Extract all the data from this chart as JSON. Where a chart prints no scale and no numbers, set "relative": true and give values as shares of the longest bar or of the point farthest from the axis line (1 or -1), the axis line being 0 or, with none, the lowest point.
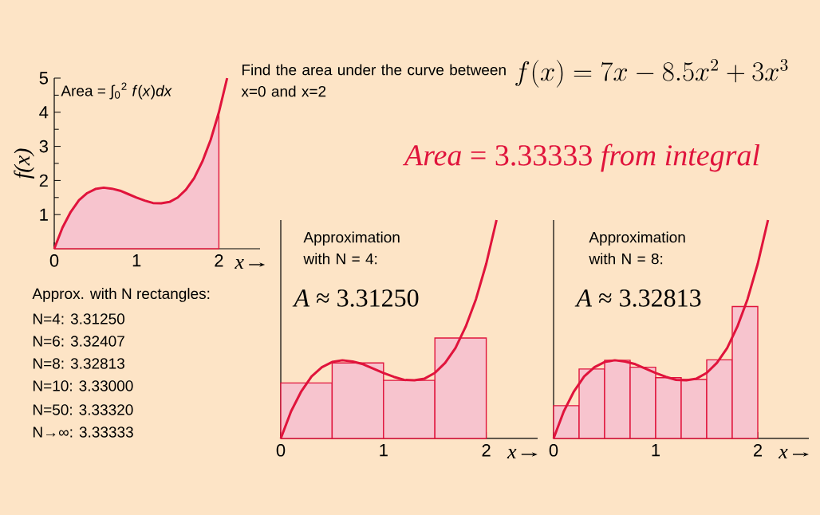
{
  "chart_data": [
    {
      "type": "area",
      "xlabel": "x",
      "ylabel": "f(x)",
      "xlim": [
        0,
        2.5
      ],
      "ylim": [
        0,
        5
      ],
      "xticks": [
        0,
        1,
        2
      ],
      "yticks": [
        1,
        2,
        3,
        4,
        5
      ],
      "series": [
        {
          "color": "#e0143c",
          "x": [
            0,
            0.1,
            0.2,
            0.3,
            0.4,
            0.5,
            0.6,
            0.7,
            0.8,
            0.9,
            1.0,
            1.1,
            1.2,
            1.3,
            1.4,
            1.5,
            1.6,
            1.7,
            1.8,
            1.9,
            2.0
          ],
          "values": [
            0,
            0.62,
            1.08,
            1.42,
            1.63,
            1.75,
            1.79,
            1.76,
            1.7,
            1.6,
            1.5,
            1.41,
            1.34,
            1.33,
            1.37,
            1.5,
            1.73,
            2.07,
            2.56,
            3.19,
            4.0
          ]
        },
        {
          "type": "line",
          "color": "#e0143c",
          "x": [
            0,
            0.1,
            0.2,
            0.3,
            0.4,
            0.5,
            0.6,
            0.7,
            0.8,
            0.9,
            1.0,
            1.1,
            1.2,
            1.3,
            1.4,
            1.5,
            1.6,
            1.7,
            1.8,
            1.9,
            2.0,
            2.1
          ],
          "values": [
            0,
            0.62,
            1.08,
            1.42,
            1.63,
            1.75,
            1.79,
            1.76,
            1.7,
            1.6,
            1.5,
            1.41,
            1.34,
            1.33,
            1.37,
            1.5,
            1.73,
            2.07,
            2.56,
            3.19,
            4.0,
            5.0
          ]
        }
      ],
      "annotations": [
        "Find the area under the curve between x=0 and x=2",
        "f(x) = 7x - 8.5x^{2} + 3x^{3}",
        "*Area* = 3.33333 *from integral*",
        "Area = ∫$_{0}$$^{2}$ *f*(*x*)*dx*",
        "Approx. with  N rectangles:",
        "N=4:   3.31250",
        "N=6:   3.32407",
        "N=8:   3.32813",
        "N=10: 3.33000",
        "N=50: 3.33320",
        "N→∞: 3.33333"
      ]
    },
    {
      "type": "bar",
      "relative": true,
      "xlabel": "x",
      "xlim": [
        0,
        2.5
      ],
      "xticks": [
        0,
        1,
        2
      ],
      "series": [
        {
          "color": "#e0143c",
          "x": [
            0.25,
            0.75,
            1.25,
            1.75
          ],
          "values": [
            0.254,
            0.346,
            0.266,
            0.46
          ]
        },
        {
          "type": "line",
          "color": "#e0143c",
          "x": [
            0,
            0.1,
            0.2,
            0.3,
            0.4,
            0.5,
            0.6,
            0.7,
            0.8,
            0.9,
            1.0,
            1.1,
            1.2,
            1.3,
            1.4,
            1.5,
            1.6,
            1.7,
            1.8,
            1.9,
            2.0,
            2.1
          ],
          "values": [
            0,
            0.124,
            0.216,
            0.284,
            0.326,
            0.35,
            0.358,
            0.352,
            0.34,
            0.32,
            0.3,
            0.282,
            0.268,
            0.266,
            0.274,
            0.3,
            0.346,
            0.414,
            0.512,
            0.638,
            0.8,
            1.0
          ]
        }
      ],
      "annotations": [
        "Approximation with N = 4:",
        "*A* ≈ 3.31250"
      ]
    },
    {
      "type": "bar",
      "relative": true,
      "xlabel": "x",
      "xlim": [
        0,
        2.5
      ],
      "xticks": [
        0,
        1,
        2
      ],
      "series": [
        {
          "color": "#e0143c",
          "x": [
            0.125,
            0.375,
            0.625,
            0.875,
            1.125,
            1.375,
            1.625,
            1.875
          ],
          "values": [
            0.15,
            0.318,
            0.358,
            0.326,
            0.278,
            0.27,
            0.36,
            0.604
          ]
        },
        {
          "type": "line",
          "color": "#e0143c",
          "x": [
            0,
            0.1,
            0.2,
            0.3,
            0.4,
            0.5,
            0.6,
            0.7,
            0.8,
            0.9,
            1.0,
            1.1,
            1.2,
            1.3,
            1.4,
            1.5,
            1.6,
            1.7,
            1.8,
            1.9,
            2.0,
            2.1
          ],
          "values": [
            0,
            0.124,
            0.216,
            0.284,
            0.326,
            0.35,
            0.358,
            0.352,
            0.34,
            0.32,
            0.3,
            0.282,
            0.268,
            0.266,
            0.274,
            0.3,
            0.346,
            0.414,
            0.512,
            0.638,
            0.8,
            1.0
          ]
        }
      ],
      "annotations": [
        "Approximation with N = 8:",
        "*A* ≈ 3.32813"
      ]
    }
  ]
}
